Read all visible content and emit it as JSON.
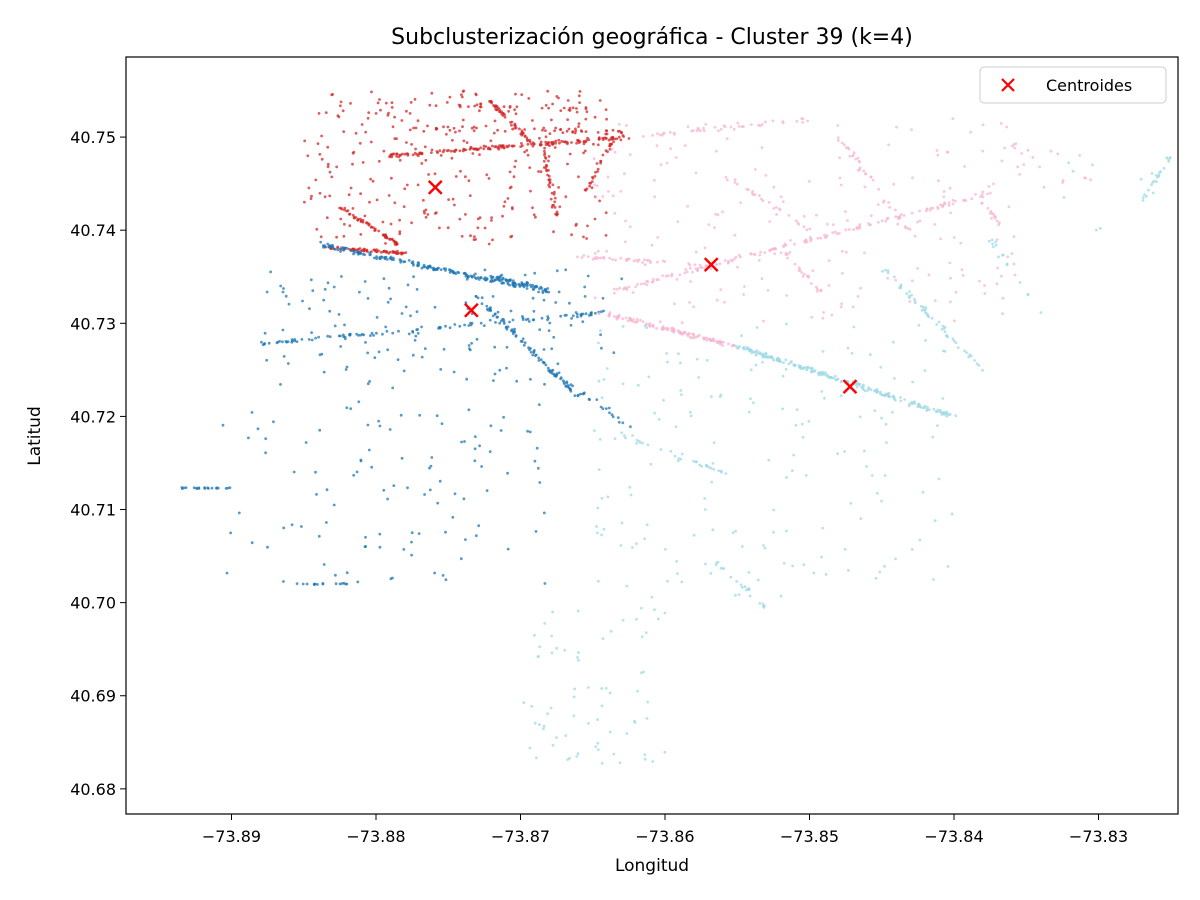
{
  "chart_data": {
    "type": "scatter",
    "title": "Subclusterización geográfica - Cluster 39 (k=4)",
    "xlabel": "Longitud",
    "ylabel": "Latitud",
    "xlim": [
      -73.8973,
      -73.8245
    ],
    "ylim": [
      40.6773,
      40.7586
    ],
    "x_ticks": [
      -73.89,
      -73.88,
      -73.87,
      -73.86,
      -73.85,
      -73.84,
      -73.83
    ],
    "x_tick_labels": [
      "−73.89",
      "−73.88",
      "−73.87",
      "−73.86",
      "−73.85",
      "−73.84",
      "−73.83"
    ],
    "y_ticks": [
      40.68,
      40.69,
      40.7,
      40.71,
      40.72,
      40.73,
      40.74,
      40.75
    ],
    "y_tick_labels": [
      "40.68",
      "40.69",
      "40.70",
      "40.71",
      "40.72",
      "40.73",
      "40.74",
      "40.75"
    ],
    "grid": false,
    "legend": {
      "position": "top-right",
      "entries": [
        "Centroides"
      ]
    },
    "colors": {
      "red": "#d62728",
      "blue": "#1f77b4",
      "pink": "#f7b6d2",
      "cyan": "#9edae5",
      "centroid": "#ff0000"
    },
    "centroids": {
      "name": "Centroides",
      "points": [
        {
          "x": -73.8759,
          "y": 40.7446
        },
        {
          "x": -73.8734,
          "y": 40.7314
        },
        {
          "x": -73.8568,
          "y": 40.7363
        },
        {
          "x": -73.8472,
          "y": 40.7232
        }
      ]
    },
    "clusters": [
      {
        "color": "red",
        "segments": [
          {
            "from": [
              -73.879,
              40.748
            ],
            "to": [
              -73.8625,
              40.75
            ],
            "n": 150,
            "jitter": 0.00025
          },
          {
            "from": [
              -73.8775,
              40.751
            ],
            "to": [
              -73.8625,
              40.7505
            ],
            "n": 50,
            "jitter": 0.0004
          },
          {
            "from": [
              -73.876,
              40.7535
            ],
            "to": [
              -73.864,
              40.753
            ],
            "n": 35,
            "jitter": 0.0004
          },
          {
            "from": [
              -73.8722,
              40.754
            ],
            "to": [
              -73.869,
              40.749
            ],
            "n": 45,
            "jitter": 0.0002
          },
          {
            "from": [
              -73.8825,
              40.7425
            ],
            "to": [
              -73.8785,
              40.7385
            ],
            "n": 60,
            "jitter": 0.0002
          },
          {
            "from": [
              -73.8838,
              40.7382
            ],
            "to": [
              -73.878,
              40.7375
            ],
            "n": 70,
            "jitter": 0.0002
          },
          {
            "from": [
              -73.8685,
              40.749
            ],
            "to": [
              -73.8675,
              40.7415
            ],
            "n": 35,
            "jitter": 0.0002
          },
          {
            "from": [
              -73.8635,
              40.75
            ],
            "to": [
              -73.8655,
              40.744
            ],
            "n": 25,
            "jitter": 0.0002
          }
        ],
        "scatter": [
          {
            "box": [
              -73.885,
              -73.864,
              40.7385,
              40.755
            ],
            "n": 260
          }
        ]
      },
      {
        "color": "blue",
        "segments": [
          {
            "from": [
              -73.884,
              40.7385
            ],
            "to": [
              -73.87,
              40.734
            ],
            "n": 160,
            "jitter": 0.0003
          },
          {
            "from": [
              -73.872,
              40.735
            ],
            "to": [
              -73.868,
              40.7335
            ],
            "n": 70,
            "jitter": 0.0004
          },
          {
            "from": [
              -73.888,
              40.7278
            ],
            "to": [
              -73.864,
              40.7312
            ],
            "n": 100,
            "jitter": 0.00025
          },
          {
            "from": [
              -73.873,
              40.733
            ],
            "to": [
              -73.866,
              40.722
            ],
            "n": 80,
            "jitter": 0.00025
          },
          {
            "from": [
              -73.868,
              40.725
            ],
            "to": [
              -73.862,
              40.7185
            ],
            "n": 30,
            "jitter": 0.0003
          },
          {
            "from": [
              -73.8935,
              40.7123
            ],
            "to": [
              -73.8895,
              40.7123
            ],
            "n": 20,
            "jitter": 0.0001
          },
          {
            "from": [
              -73.8855,
              40.702
            ],
            "to": [
              -73.882,
              40.702
            ],
            "n": 15,
            "jitter": 0.0001
          }
        ],
        "scatter": [
          {
            "box": [
              -73.888,
              -73.863,
              40.725,
              40.736
            ],
            "n": 120
          },
          {
            "box": [
              -73.891,
              -73.868,
              40.702,
              40.725
            ],
            "n": 120
          }
        ]
      },
      {
        "color": "pink",
        "segments": [
          {
            "from": [
              -73.8635,
              40.7335
            ],
            "to": [
              -73.8375,
              40.744
            ],
            "n": 140,
            "jitter": 0.0003
          },
          {
            "from": [
              -73.866,
              40.7372
            ],
            "to": [
              -73.857,
              40.7362
            ],
            "n": 40,
            "jitter": 0.0003
          },
          {
            "from": [
              -73.864,
              40.731
            ],
            "to": [
              -73.855,
              40.7275
            ],
            "n": 120,
            "jitter": 0.0003
          },
          {
            "from": [
              -73.862,
              40.75
            ],
            "to": [
              -73.85,
              40.752
            ],
            "n": 35,
            "jitter": 0.0003
          },
          {
            "from": [
              -73.848,
              40.75
            ],
            "to": [
              -73.843,
              40.74
            ],
            "n": 35,
            "jitter": 0.0003
          },
          {
            "from": [
              -73.856,
              40.746
            ],
            "to": [
              -73.85,
              40.74
            ],
            "n": 25,
            "jitter": 0.0003
          },
          {
            "from": [
              -73.852,
              40.738
            ],
            "to": [
              -73.849,
              40.733
            ],
            "n": 20,
            "jitter": 0.0003
          },
          {
            "from": [
              -73.8385,
              40.744
            ],
            "to": [
              -73.8365,
              40.74
            ],
            "n": 15,
            "jitter": 0.0002
          }
        ],
        "scatter": [
          {
            "box": [
              -73.865,
              -73.835,
              40.73,
              40.752
            ],
            "n": 200
          },
          {
            "box": [
              -73.836,
              -73.83,
              40.744,
              40.749
            ],
            "n": 15
          }
        ]
      },
      {
        "color": "cyan",
        "segments": [
          {
            "from": [
              -73.855,
              40.7275
            ],
            "to": [
              -73.84,
              40.72
            ],
            "n": 200,
            "jitter": 0.0003
          },
          {
            "from": [
              -73.845,
              40.736
            ],
            "to": [
              -73.838,
              40.725
            ],
            "n": 50,
            "jitter": 0.0003
          },
          {
            "from": [
              -73.8375,
              40.739
            ],
            "to": [
              -73.834,
              40.731
            ],
            "n": 15,
            "jitter": 0.0003
          },
          {
            "from": [
              -73.863,
              40.718
            ],
            "to": [
              -73.856,
              40.714
            ],
            "n": 30,
            "jitter": 0.0003
          },
          {
            "from": [
              -73.827,
              40.743
            ],
            "to": [
              -73.825,
              40.748
            ],
            "n": 20,
            "jitter": 0.0002
          },
          {
            "from": [
              -73.857,
              40.705
            ],
            "to": [
              -73.853,
              40.6995
            ],
            "n": 20,
            "jitter": 0.0002
          }
        ],
        "scatter": [
          {
            "box": [
              -73.865,
              -73.84,
              40.7,
              40.73
            ],
            "n": 170
          },
          {
            "box": [
              -73.87,
              -73.86,
              40.682,
              40.7
            ],
            "n": 70
          },
          {
            "box": [
              -73.833,
              -73.825,
              40.74,
              40.748
            ],
            "n": 10
          }
        ]
      }
    ]
  }
}
